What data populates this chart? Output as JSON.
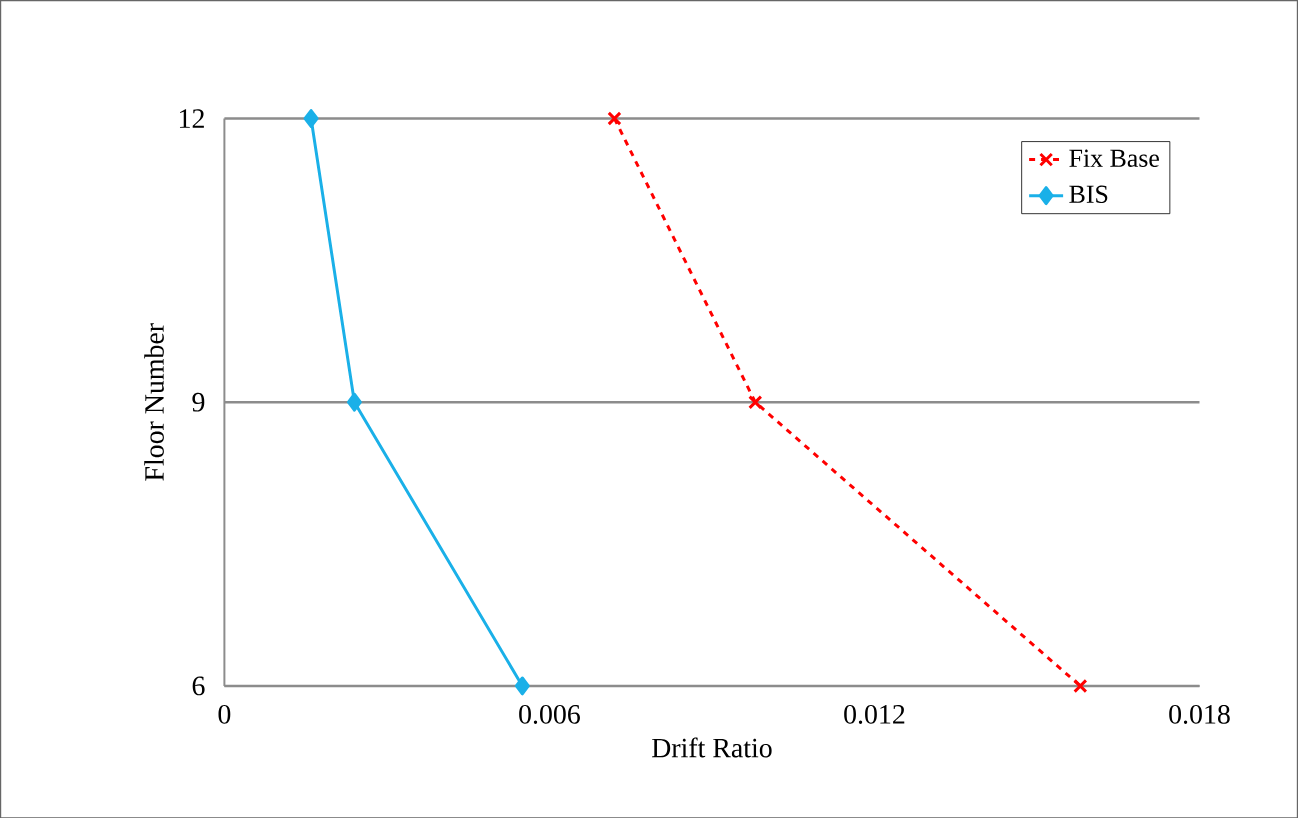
{
  "chart_data": {
    "type": "line",
    "xlabel": "Drift Ratio",
    "ylabel": "Floor Number",
    "xlim": [
      0,
      0.018
    ],
    "xticks": [
      0,
      0.006,
      0.012,
      0.018
    ],
    "ylim": [
      6,
      12
    ],
    "yticks": [
      6,
      9,
      12
    ],
    "grid": "y",
    "legend": "top right",
    "series": [
      {
        "name": "Fix Base",
        "color": "#ff0000",
        "x": [
          0.0072,
          0.0098,
          0.0158
        ],
        "values": [
          12,
          9,
          6
        ],
        "line_style": "dashed",
        "marker": "cross"
      },
      {
        "name": "BIS",
        "color": "#1ab0e8",
        "x": [
          0.0016,
          0.0024,
          0.0055
        ],
        "values": [
          12,
          9,
          6
        ],
        "line_style": "solid",
        "marker": "diamond"
      }
    ]
  }
}
